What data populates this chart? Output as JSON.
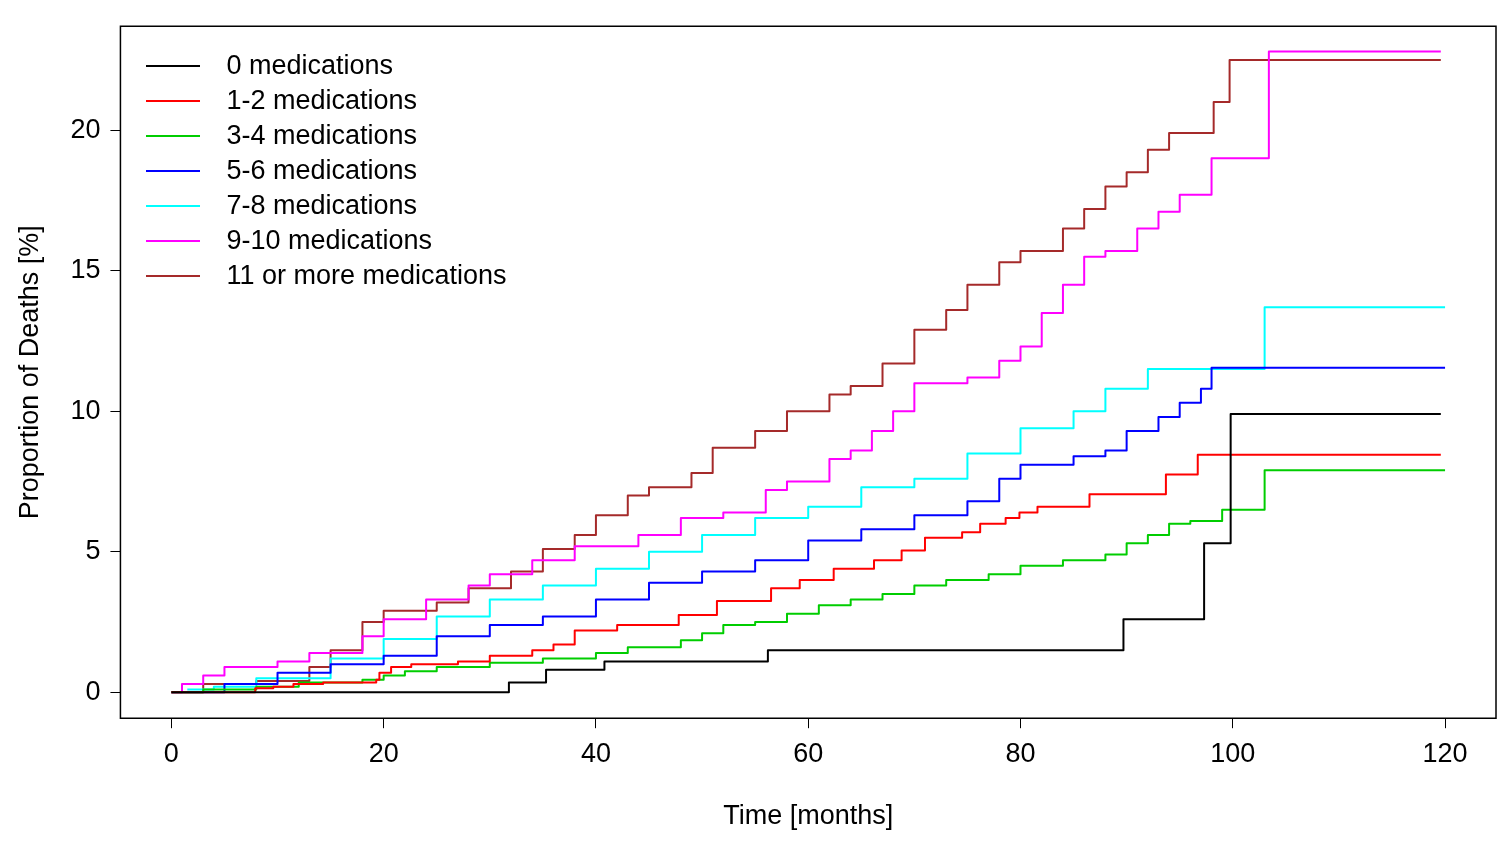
{
  "chart_data": {
    "type": "step",
    "xlabel": "Time [months]",
    "ylabel": "Proportion of Deaths [%]",
    "xlim": [
      -4.8,
      124.8
    ],
    "ylim": [
      -0.92,
      23.7
    ],
    "xticks": [
      0,
      20,
      40,
      60,
      80,
      100,
      120
    ],
    "yticks": [
      0,
      5,
      10,
      15,
      20
    ],
    "grid": false,
    "legend": "top left",
    "series": [
      {
        "name": "0 medications",
        "color": "#000000",
        "x": [
          0,
          31.8,
          35.3,
          40.8,
          56.2,
          89.7,
          97.3,
          99.8,
          119.6
        ],
        "values": [
          0,
          0.35,
          0.8,
          1.1,
          1.5,
          2.6,
          5.3,
          9.9,
          9.9
        ]
      },
      {
        "name": "1-2 medications",
        "color": "#ff0000",
        "x": [
          0,
          7.9,
          9.6,
          11.5,
          14.3,
          19.3,
          19.6,
          20.7,
          22.6,
          27,
          30,
          34,
          36,
          38,
          42,
          47.8,
          51.4,
          56.5,
          59.2,
          62.4,
          66.2,
          68.8,
          71,
          74.5,
          76.2,
          78.6,
          79.9,
          81.6,
          86.5,
          93.7,
          96.7,
          119.6
        ],
        "values": [
          0,
          0.15,
          0.2,
          0.3,
          0.35,
          0.45,
          0.7,
          0.9,
          1.0,
          1.1,
          1.3,
          1.5,
          1.7,
          2.2,
          2.4,
          2.75,
          3.25,
          3.7,
          4.0,
          4.4,
          4.7,
          5.05,
          5.5,
          5.7,
          6.0,
          6.2,
          6.4,
          6.6,
          7.05,
          7.75,
          8.45,
          8.45
        ]
      },
      {
        "name": "3-4 medications",
        "color": "#00cd00",
        "x": [
          0,
          3,
          8,
          12,
          18,
          20,
          22,
          25,
          30,
          35,
          40,
          43,
          48,
          50,
          52,
          55,
          58,
          61,
          64,
          67,
          70,
          73,
          77,
          80,
          84,
          88,
          90,
          92,
          94,
          96,
          99,
          103,
          120
        ],
        "values": [
          0,
          0.1,
          0.2,
          0.35,
          0.45,
          0.6,
          0.75,
          0.9,
          1.05,
          1.2,
          1.4,
          1.6,
          1.85,
          2.1,
          2.4,
          2.5,
          2.8,
          3.1,
          3.3,
          3.5,
          3.8,
          4.0,
          4.2,
          4.5,
          4.7,
          4.9,
          5.3,
          5.6,
          6.0,
          6.1,
          6.5,
          7.9,
          7.9
        ]
      },
      {
        "name": "5-6 medications",
        "color": "#0000ff",
        "x": [
          0,
          5,
          10,
          15,
          20,
          25,
          30,
          35,
          40,
          45,
          50,
          55,
          60,
          65,
          70,
          75,
          78,
          80,
          85,
          88,
          90,
          93,
          95,
          97,
          98,
          120
        ],
        "values": [
          0,
          0.3,
          0.7,
          1.0,
          1.3,
          2.0,
          2.4,
          2.7,
          3.3,
          3.9,
          4.3,
          4.7,
          5.4,
          5.8,
          6.3,
          6.8,
          7.6,
          8.1,
          8.4,
          8.6,
          9.3,
          9.8,
          10.3,
          10.8,
          11.55,
          11.55
        ]
      },
      {
        "name": "7-8 medications",
        "color": "#00ffff",
        "x": [
          1.5,
          4,
          8,
          15,
          20,
          25,
          30,
          35,
          40,
          45,
          50,
          55,
          60,
          65,
          70,
          75,
          80,
          85,
          88,
          92,
          103,
          120
        ],
        "values": [
          0.1,
          0.2,
          0.5,
          1.2,
          1.9,
          2.7,
          3.3,
          3.8,
          4.4,
          5.0,
          5.6,
          6.2,
          6.6,
          7.3,
          7.6,
          8.5,
          9.4,
          10.0,
          10.8,
          11.5,
          13.7,
          13.7
        ]
      },
      {
        "name": "9-10 medications",
        "color": "#ff00ff",
        "x": [
          0,
          1,
          3,
          5,
          10,
          13,
          18,
          20,
          24,
          28,
          30,
          34,
          38,
          44,
          48,
          52,
          56,
          58,
          62,
          64,
          66,
          68,
          70,
          75,
          78,
          80,
          82,
          84,
          86,
          88,
          91,
          93,
          95,
          98,
          103.4,
          119.6
        ],
        "values": [
          0,
          0.3,
          0.6,
          0.9,
          1.1,
          1.4,
          2.0,
          2.6,
          3.3,
          3.8,
          4.2,
          4.7,
          5.2,
          5.6,
          6.2,
          6.4,
          7.2,
          7.5,
          8.3,
          8.6,
          9.3,
          10.0,
          11.0,
          11.2,
          11.8,
          12.3,
          13.5,
          14.5,
          15.5,
          15.7,
          16.5,
          17.1,
          17.7,
          19.0,
          22.8,
          22.8
        ]
      },
      {
        "name": "11 or more medications",
        "color": "#a52a2a",
        "x": [
          0,
          3,
          8,
          13,
          15,
          18,
          20,
          25,
          28,
          32,
          35,
          38,
          40,
          43,
          45,
          49,
          51,
          55,
          58,
          62,
          64,
          67,
          70,
          73,
          75,
          78,
          80,
          84,
          86,
          88,
          90,
          92,
          94,
          98.2,
          99.7,
          119.6
        ],
        "values": [
          0,
          0.3,
          0.4,
          0.9,
          1.5,
          2.5,
          2.9,
          3.2,
          3.7,
          4.3,
          5.1,
          5.6,
          6.3,
          7.0,
          7.3,
          7.8,
          8.7,
          9.3,
          10.0,
          10.6,
          10.9,
          11.7,
          12.9,
          13.6,
          14.5,
          15.3,
          15.7,
          16.5,
          17.2,
          18.0,
          18.5,
          19.3,
          19.9,
          21.0,
          22.5,
          22.5
        ]
      }
    ]
  }
}
